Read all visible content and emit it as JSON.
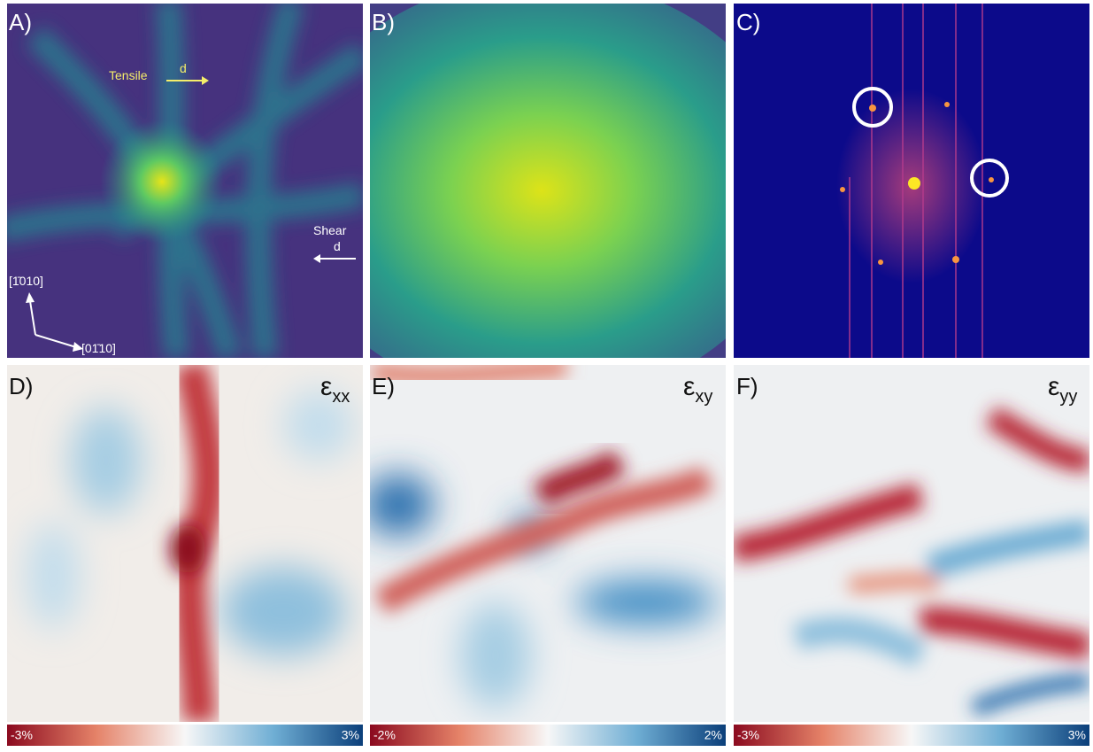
{
  "panels": [
    {
      "label": "A)",
      "annotations": {
        "tensile": "Tensile",
        "tensile_d": "d",
        "shear": "Shear",
        "shear_d": "d",
        "axis_up": "[1̄010]",
        "axis_right": "[01̄10]"
      }
    },
    {
      "label": "B)"
    },
    {
      "label": "C)"
    },
    {
      "label": "D)",
      "symbol": "ε",
      "subscript": "xx"
    },
    {
      "label": "E)",
      "symbol": "ε",
      "subscript": "xy"
    },
    {
      "label": "F)",
      "symbol": "ε",
      "subscript": "yy"
    }
  ],
  "colorbars": [
    {
      "min": "-3%",
      "max": "3%"
    },
    {
      "min": "-2%",
      "max": "2%"
    },
    {
      "min": "-3%",
      "max": "3%"
    }
  ]
}
